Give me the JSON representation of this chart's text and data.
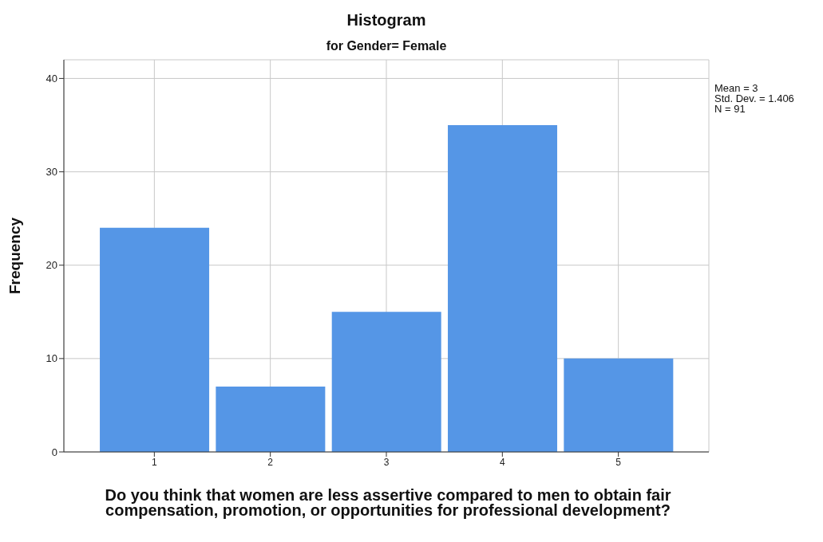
{
  "chart_data": {
    "type": "histogram",
    "title": "Histogram",
    "subtitle": "for Gender= Female",
    "xlabel": "Do you think that women are less assertive compared to men to obtain fair compensation, promotion, or opportunities for professional development?",
    "ylabel": "Frequency",
    "bins": [
      0.5,
      1.5,
      2.5,
      3.5,
      4.5,
      5.5
    ],
    "values": [
      24,
      7,
      15,
      35,
      10
    ],
    "color": "#5596e6",
    "xlim": [
      0.22,
      5.78
    ],
    "xticks": [
      1,
      2,
      3,
      4,
      5
    ],
    "ylim": [
      0,
      42
    ],
    "yticks": [
      0,
      10,
      20,
      30,
      40
    ],
    "grid": true,
    "annotations": [
      "Mean = 3",
      "Std. Dev. = 1.406",
      "N = 91"
    ]
  }
}
